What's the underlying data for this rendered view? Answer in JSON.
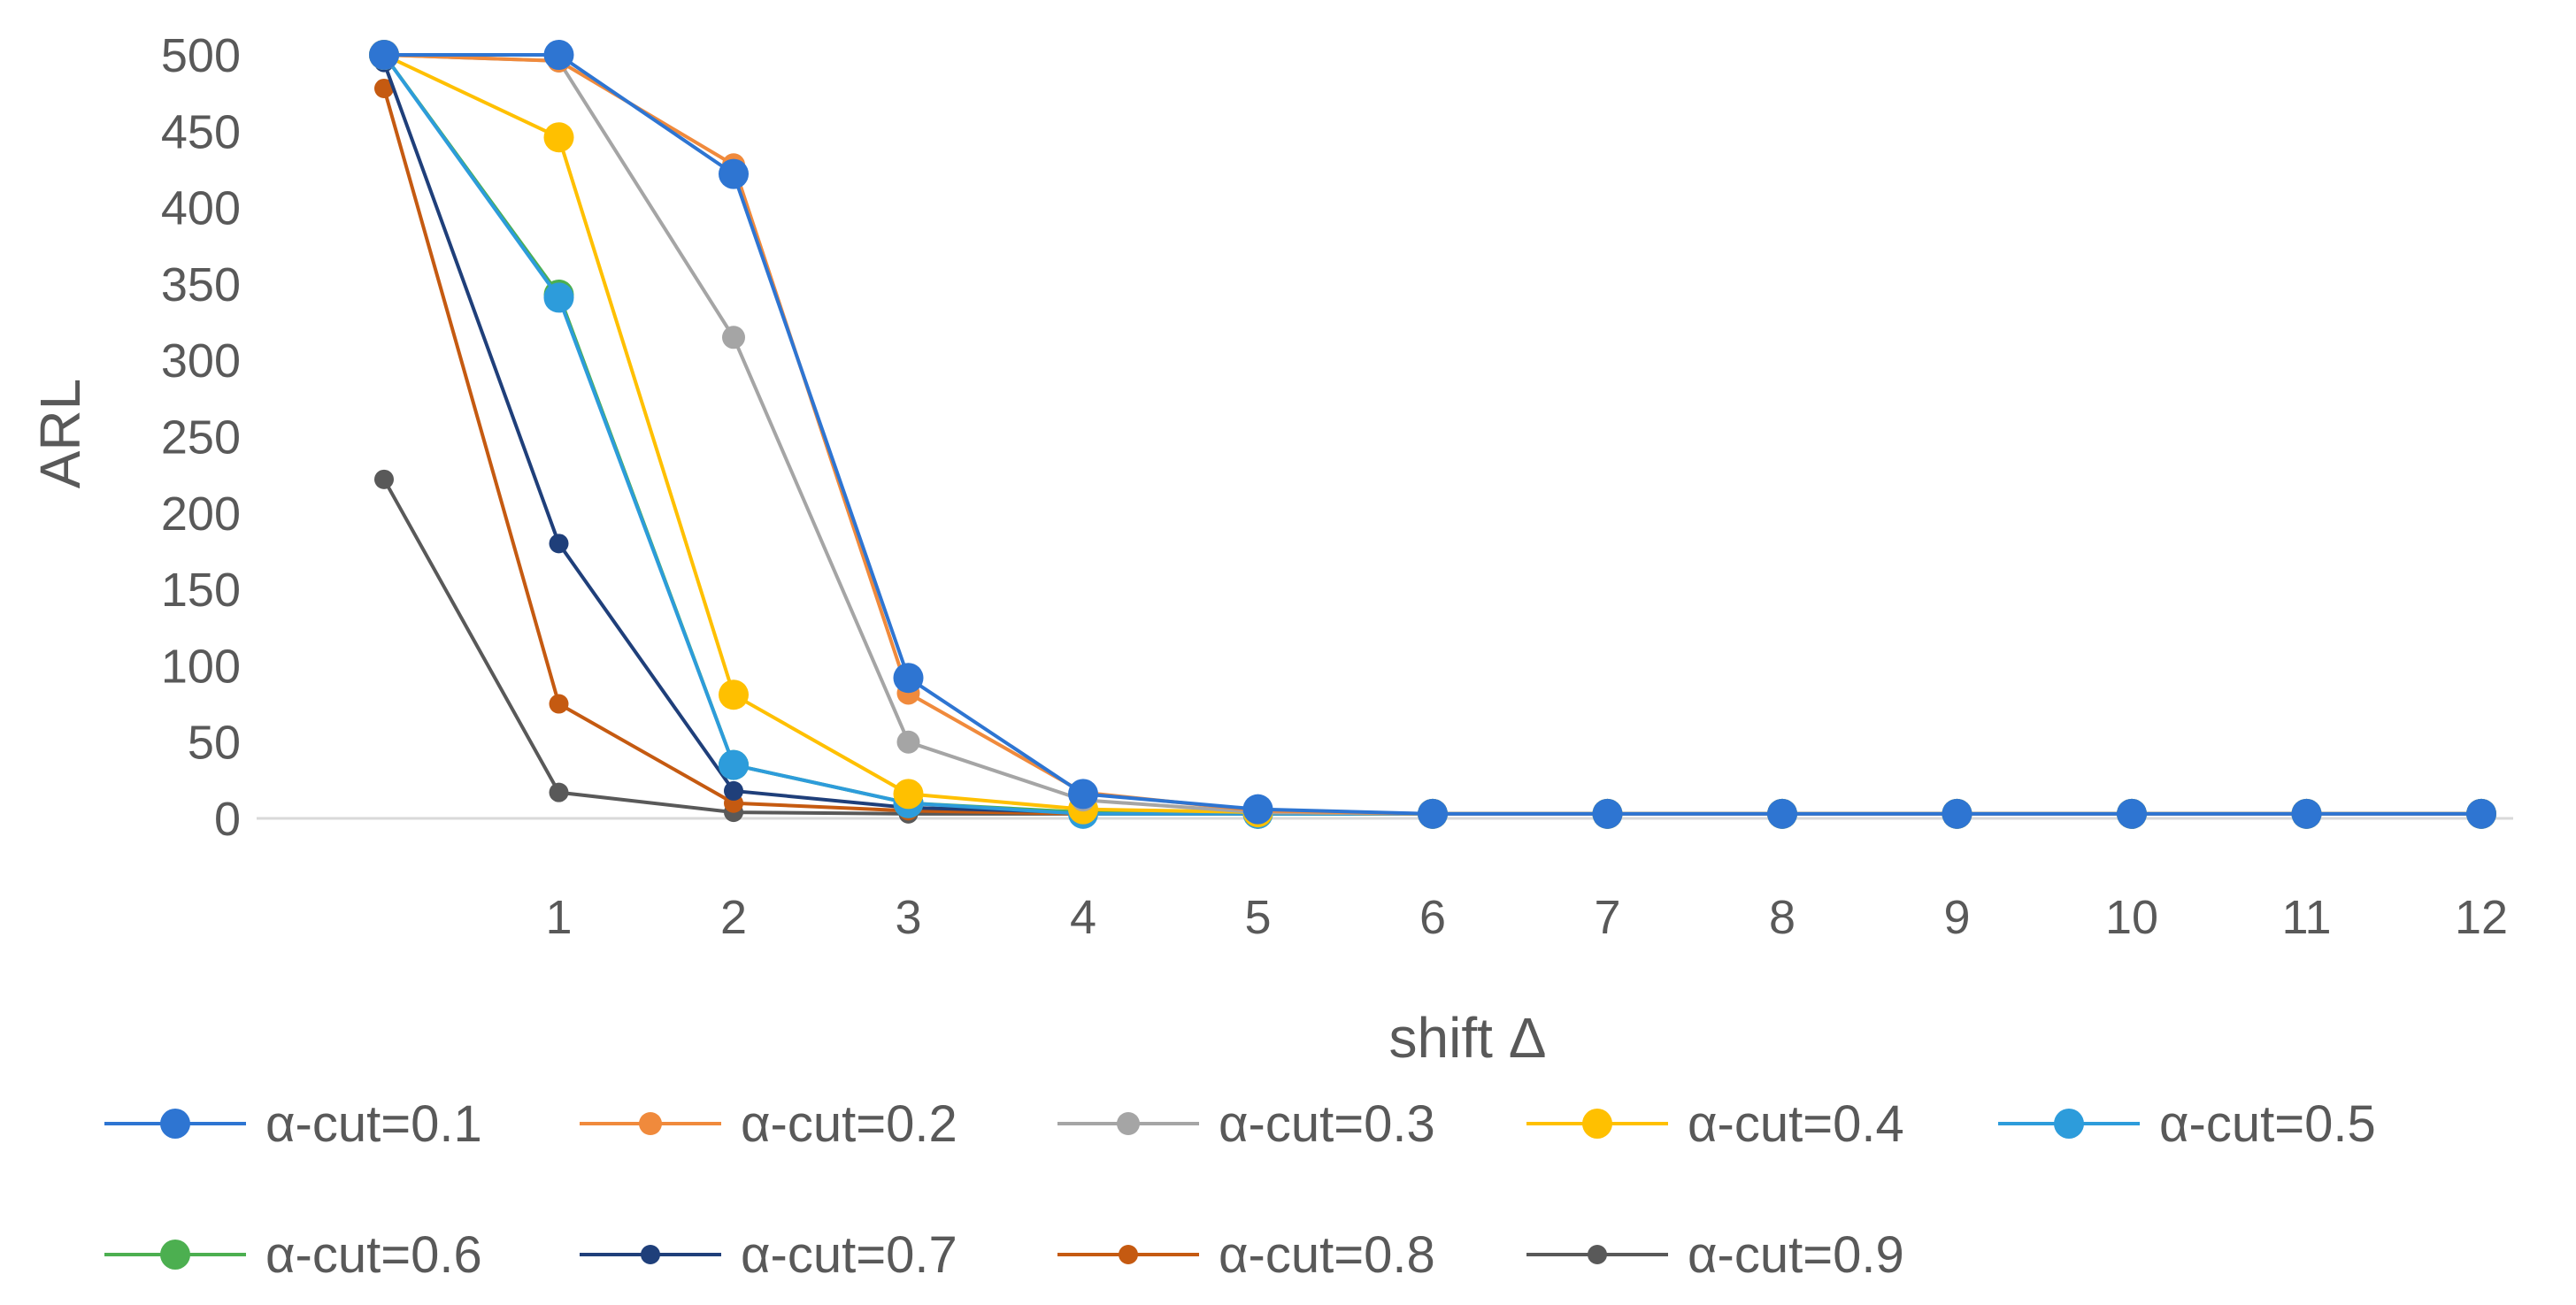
{
  "chart_data": {
    "type": "line",
    "xlabel": "shift Δ",
    "ylabel": "ARL",
    "x": [
      0,
      1,
      2,
      3,
      4,
      5,
      6,
      7,
      8,
      9,
      10,
      11,
      12
    ],
    "x_tick_labels": [
      "1",
      "2",
      "3",
      "4",
      "5",
      "6",
      "7",
      "8",
      "9",
      "10",
      "11",
      "12"
    ],
    "ylim": [
      0,
      500
    ],
    "y_ticks": [
      0,
      50,
      100,
      150,
      200,
      250,
      300,
      350,
      400,
      450,
      500
    ],
    "grid": false,
    "legend_position": "bottom",
    "series": [
      {
        "name": "α-cut=0.1",
        "color": "#2E75D2",
        "marker": "large",
        "values": [
          500,
          500,
          422,
          92,
          16,
          6,
          3,
          3,
          3,
          3,
          3,
          3,
          3
        ]
      },
      {
        "name": "α-cut=0.2",
        "color": "#F08A3C",
        "marker": "medium",
        "values": [
          500,
          496,
          428,
          82,
          17,
          5,
          3,
          3,
          3,
          3,
          3,
          3,
          3
        ]
      },
      {
        "name": "α-cut=0.3",
        "color": "#A5A5A5",
        "marker": "medium",
        "values": [
          500,
          496,
          315,
          50,
          12,
          4,
          3,
          3,
          3,
          3,
          3,
          3,
          3
        ]
      },
      {
        "name": "α-cut=0.4",
        "color": "#FFC000",
        "marker": "large",
        "values": [
          500,
          446,
          81,
          16,
          6,
          4,
          3,
          3,
          3,
          3,
          3,
          3,
          3
        ]
      },
      {
        "name": "α-cut=0.5",
        "color": "#2D9CDB",
        "marker": "large",
        "values": [
          500,
          341,
          35,
          10,
          3,
          3,
          3,
          3,
          3,
          3,
          3,
          3,
          3
        ]
      },
      {
        "name": "α-cut=0.6",
        "color": "#4CAF50",
        "marker": "large",
        "values": [
          500,
          343,
          35,
          10,
          4,
          3,
          3,
          3,
          3,
          3,
          3,
          3,
          3
        ]
      },
      {
        "name": "α-cut=0.7",
        "color": "#1F3F7A",
        "marker": "small",
        "values": [
          495,
          180,
          18,
          7,
          4,
          3,
          3,
          3,
          3,
          3,
          3,
          3,
          3
        ]
      },
      {
        "name": "α-cut=0.8",
        "color": "#C55A11",
        "marker": "small",
        "values": [
          478,
          75,
          10,
          5,
          3,
          3,
          3,
          3,
          3,
          3,
          3,
          3,
          3
        ]
      },
      {
        "name": "α-cut=0.9",
        "color": "#595959",
        "marker": "small",
        "values": [
          222,
          17,
          4,
          3,
          3,
          3,
          3,
          3,
          3,
          3,
          3,
          3,
          3
        ]
      }
    ]
  }
}
